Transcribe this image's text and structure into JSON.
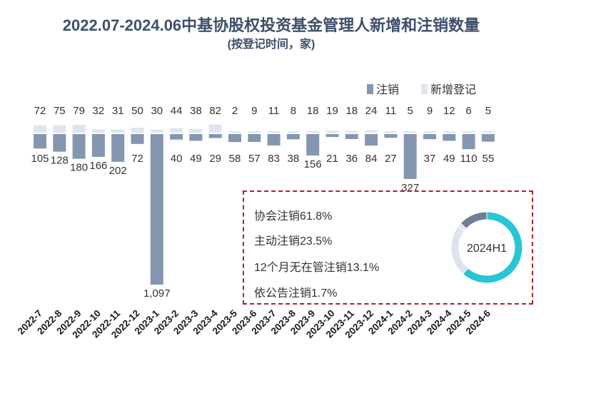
{
  "title": "2022.07-2024.06中基协股权投资基金管理人新增和注销数量",
  "subtitle": "(按登记时间，家)",
  "colors": {
    "cancel": "#8496b0",
    "new": "#dfe5ee",
    "accent": "#26c6d4",
    "donut_dark": "#6e7e95",
    "donut_light": "#dfe4ec",
    "box_border": "#b0202a"
  },
  "chart_data": {
    "type": "bar",
    "categories": [
      "2022-7",
      "2022-8",
      "2022-9",
      "2022-10",
      "2022-11",
      "2022-12",
      "2023-1",
      "2023-2",
      "2023-3",
      "2023-4",
      "2023-5",
      "2023-6",
      "2023-7",
      "2023-8",
      "2023-9",
      "2023-10",
      "2023-11",
      "2023-12",
      "2024-1",
      "2024-2",
      "2024-3",
      "2024-4",
      "2024-5",
      "2024-6"
    ],
    "series": [
      {
        "name": "注销",
        "values": [
          105,
          128,
          180,
          166,
          202,
          72,
          1097,
          40,
          49,
          29,
          58,
          57,
          83,
          38,
          156,
          21,
          36,
          84,
          27,
          327,
          37,
          49,
          110,
          55
        ]
      },
      {
        "name": "新增登记",
        "values": [
          72,
          75,
          79,
          32,
          31,
          50,
          30,
          44,
          38,
          82,
          2,
          9,
          11,
          8,
          18,
          19,
          18,
          24,
          11,
          5,
          9,
          12,
          6,
          5
        ]
      }
    ],
    "cancel_labels": [
      "105",
      "128",
      "180",
      "166",
      "202",
      "72",
      "1,097",
      "40",
      "49",
      "29",
      "58",
      "57",
      "83",
      "38",
      "156",
      "21",
      "36",
      "84",
      "27",
      "327",
      "37",
      "49",
      "110",
      "55"
    ],
    "legend_placement": "top-right"
  },
  "notes": {
    "lines": [
      "协会注销61.8%",
      "主动注销23.5%",
      "12个月无在管注销13.1%",
      "依公告注销1.7%"
    ],
    "donut": {
      "label": "2024H1",
      "values": [
        61.8,
        23.5,
        13.1,
        1.7
      ]
    }
  }
}
